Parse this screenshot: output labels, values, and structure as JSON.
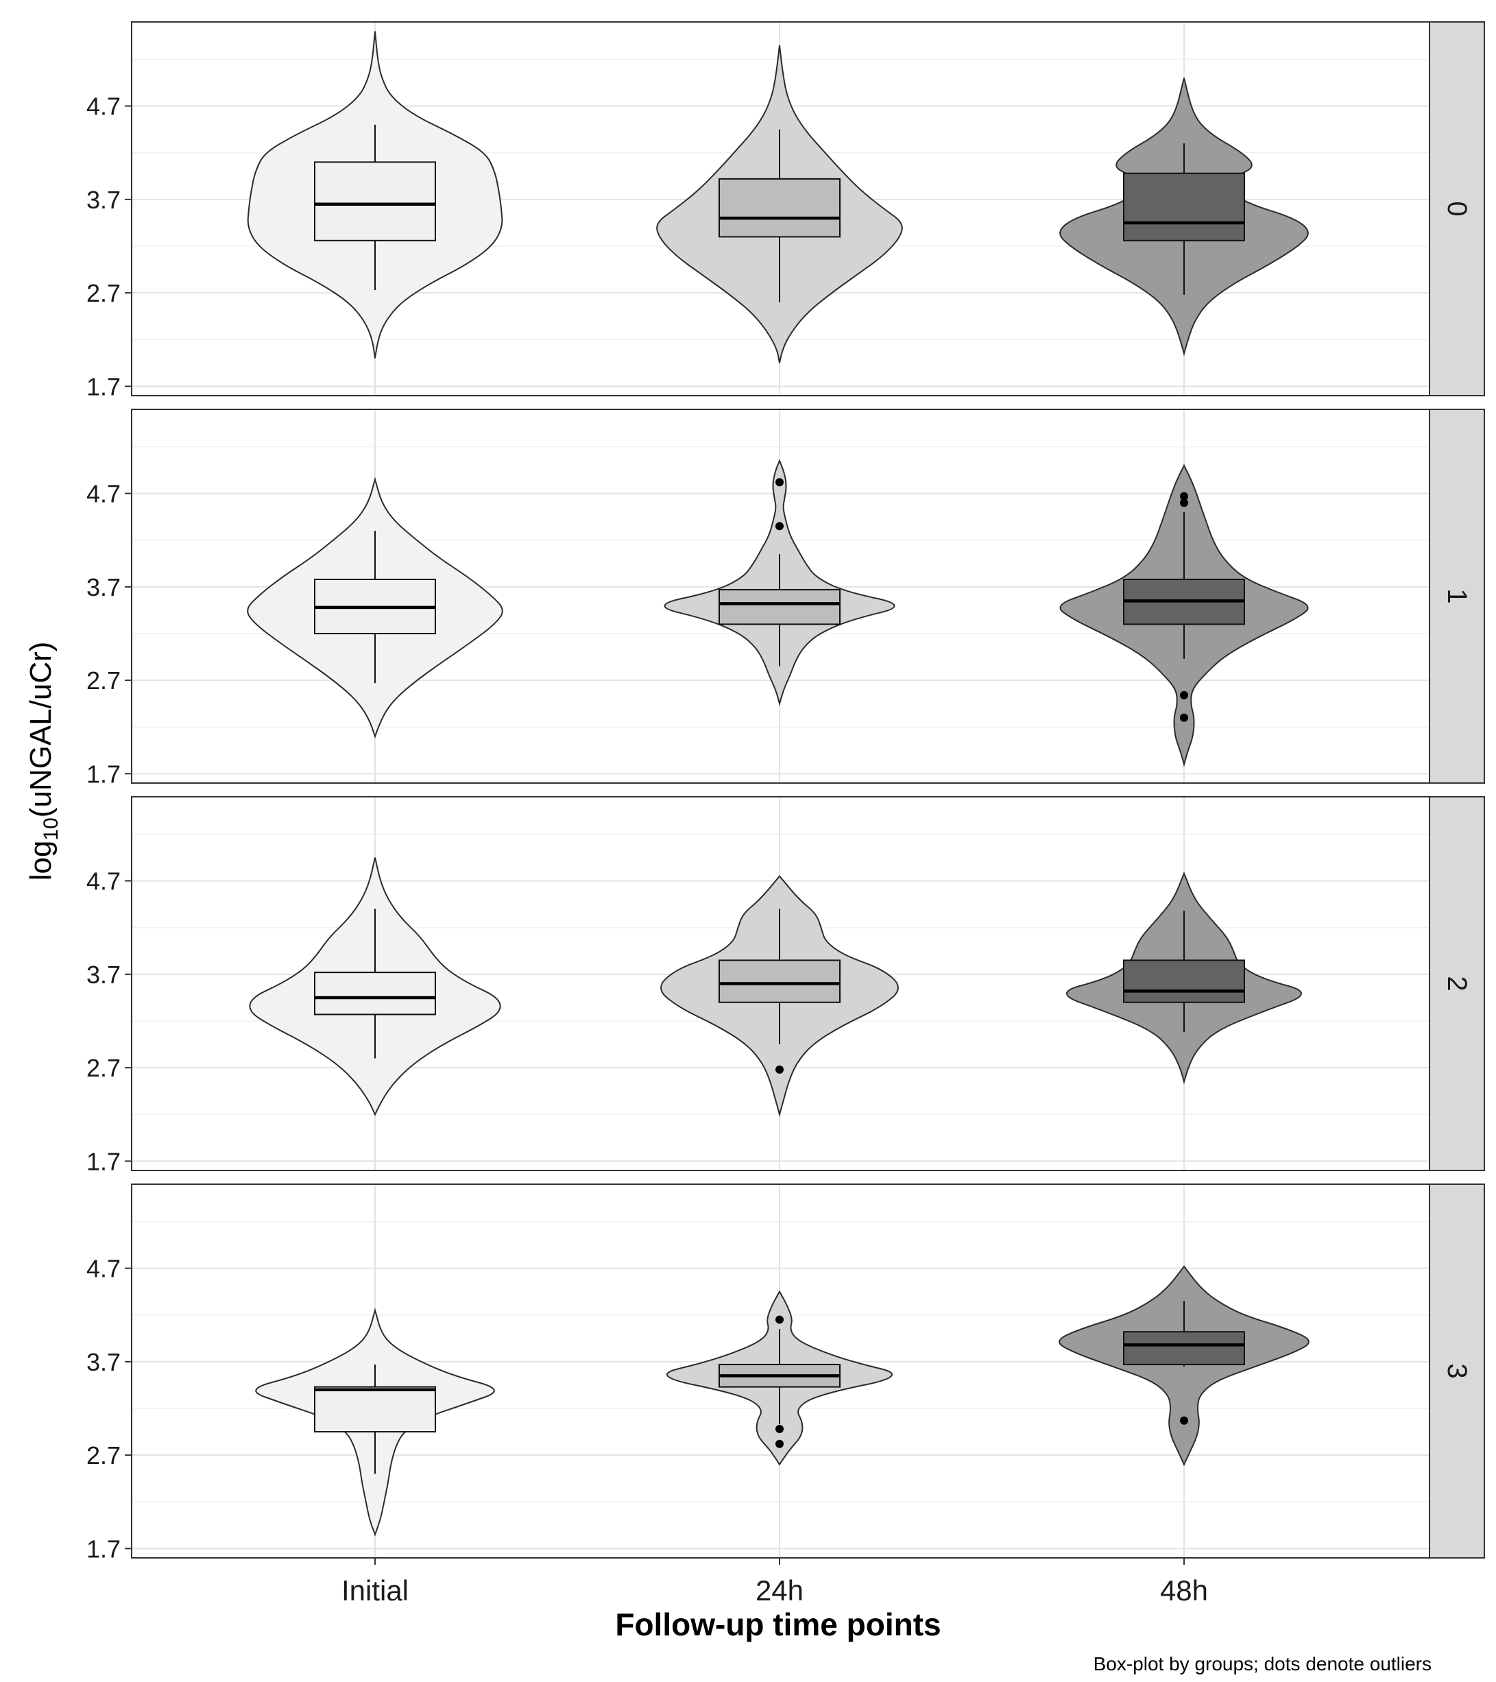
{
  "chart_data": {
    "type": "violin",
    "xlabel": "Follow-up time points",
    "ylabel_parts": {
      "base": "log",
      "subscript": "10",
      "rest": "(uNGAL/uCr)"
    },
    "caption": "Box-plot by groups; dots denote outliers",
    "categories": [
      "Initial",
      "24h",
      "48h"
    ],
    "yticks": [
      "4.7",
      "3.7",
      "2.7",
      "1.7"
    ],
    "ylim": [
      1.6,
      5.6
    ],
    "grid": true,
    "fill_colors": [
      "#f2f2f2",
      "#d4d4d4",
      "#9b9b9b"
    ],
    "box_colors": [
      "#f0f0f0",
      "#bdbdbd",
      "#636363"
    ],
    "panels": [
      {
        "label": "0",
        "groups": [
          {
            "box": {
              "q1": 3.26,
              "median": 3.65,
              "q3": 4.1,
              "whisker_low": 2.73,
              "whisker_high": 4.5
            },
            "violin_min": 2.0,
            "violin_max": 5.5,
            "profile": [
              [
                2.0,
                0
              ],
              [
                2.2,
                0.02
              ],
              [
                2.4,
                0.08
              ],
              [
                2.6,
                0.2
              ],
              [
                2.8,
                0.42
              ],
              [
                3.0,
                0.7
              ],
              [
                3.2,
                0.9
              ],
              [
                3.4,
                0.98
              ],
              [
                3.6,
                0.97
              ],
              [
                3.8,
                0.95
              ],
              [
                4.0,
                0.92
              ],
              [
                4.2,
                0.85
              ],
              [
                4.4,
                0.6
              ],
              [
                4.6,
                0.3
              ],
              [
                4.8,
                0.12
              ],
              [
                5.0,
                0.05
              ],
              [
                5.2,
                0.02
              ],
              [
                5.5,
                0
              ]
            ],
            "outliers": []
          },
          {
            "box": {
              "q1": 3.3,
              "median": 3.5,
              "q3": 3.92,
              "whisker_low": 2.6,
              "whisker_high": 4.45
            },
            "violin_min": 1.95,
            "violin_max": 5.35,
            "profile": [
              [
                1.95,
                0
              ],
              [
                2.1,
                0.02
              ],
              [
                2.3,
                0.1
              ],
              [
                2.5,
                0.22
              ],
              [
                2.7,
                0.4
              ],
              [
                2.9,
                0.6
              ],
              [
                3.1,
                0.8
              ],
              [
                3.3,
                0.93
              ],
              [
                3.45,
                0.95
              ],
              [
                3.6,
                0.8
              ],
              [
                3.8,
                0.62
              ],
              [
                4.0,
                0.48
              ],
              [
                4.2,
                0.35
              ],
              [
                4.4,
                0.22
              ],
              [
                4.6,
                0.12
              ],
              [
                4.8,
                0.06
              ],
              [
                5.0,
                0.03
              ],
              [
                5.35,
                0
              ]
            ],
            "outliers": []
          },
          {
            "box": {
              "q1": 3.26,
              "median": 3.45,
              "q3": 3.98,
              "whisker_low": 2.68,
              "whisker_high": 4.3
            },
            "violin_min": 2.05,
            "violin_max": 5.0,
            "profile": [
              [
                2.05,
                0
              ],
              [
                2.2,
                0.03
              ],
              [
                2.4,
                0.08
              ],
              [
                2.6,
                0.18
              ],
              [
                2.8,
                0.38
              ],
              [
                3.0,
                0.65
              ],
              [
                3.2,
                0.88
              ],
              [
                3.35,
                0.98
              ],
              [
                3.5,
                0.85
              ],
              [
                3.65,
                0.5
              ],
              [
                3.8,
                0.33
              ],
              [
                3.95,
                0.4
              ],
              [
                4.05,
                0.55
              ],
              [
                4.2,
                0.45
              ],
              [
                4.4,
                0.2
              ],
              [
                4.6,
                0.07
              ],
              [
                5.0,
                0
              ]
            ],
            "outliers": []
          }
        ]
      },
      {
        "label": "1",
        "groups": [
          {
            "box": {
              "q1": 3.2,
              "median": 3.48,
              "q3": 3.78,
              "whisker_low": 2.67,
              "whisker_high": 4.3
            },
            "violin_min": 2.1,
            "violin_max": 4.85,
            "profile": [
              [
                2.1,
                0
              ],
              [
                2.3,
                0.05
              ],
              [
                2.5,
                0.15
              ],
              [
                2.7,
                0.32
              ],
              [
                2.9,
                0.52
              ],
              [
                3.1,
                0.73
              ],
              [
                3.3,
                0.92
              ],
              [
                3.45,
                1.0
              ],
              [
                3.6,
                0.9
              ],
              [
                3.8,
                0.72
              ],
              [
                4.0,
                0.5
              ],
              [
                4.2,
                0.32
              ],
              [
                4.4,
                0.15
              ],
              [
                4.6,
                0.05
              ],
              [
                4.85,
                0
              ]
            ],
            "outliers": []
          },
          {
            "box": {
              "q1": 3.3,
              "median": 3.52,
              "q3": 3.67,
              "whisker_low": 2.85,
              "whisker_high": 4.05
            },
            "violin_min": 2.45,
            "violin_max": 5.05,
            "profile": [
              [
                2.45,
                0
              ],
              [
                2.6,
                0.03
              ],
              [
                2.75,
                0.08
              ],
              [
                2.9,
                0.12
              ],
              [
                3.05,
                0.18
              ],
              [
                3.2,
                0.3
              ],
              [
                3.35,
                0.55
              ],
              [
                3.5,
                1.0
              ],
              [
                3.65,
                0.5
              ],
              [
                3.8,
                0.28
              ],
              [
                3.95,
                0.2
              ],
              [
                4.1,
                0.14
              ],
              [
                4.25,
                0.08
              ],
              [
                4.4,
                0.05
              ],
              [
                4.55,
                0.025
              ],
              [
                4.65,
                0.04
              ],
              [
                4.8,
                0.055
              ],
              [
                4.95,
                0.03
              ],
              [
                5.05,
                0
              ]
            ],
            "outliers": [
              4.35,
              4.82
            ]
          },
          {
            "box": {
              "q1": 3.3,
              "median": 3.55,
              "q3": 3.78,
              "whisker_low": 2.93,
              "whisker_high": 4.5
            },
            "violin_min": 1.8,
            "violin_max": 5.0,
            "profile": [
              [
                1.8,
                0
              ],
              [
                1.95,
                0.03
              ],
              [
                2.1,
                0.07
              ],
              [
                2.3,
                0.08
              ],
              [
                2.45,
                0.05
              ],
              [
                2.6,
                0.06
              ],
              [
                2.75,
                0.15
              ],
              [
                2.95,
                0.3
              ],
              [
                3.15,
                0.55
              ],
              [
                3.35,
                0.85
              ],
              [
                3.5,
                1.0
              ],
              [
                3.65,
                0.7
              ],
              [
                3.8,
                0.45
              ],
              [
                4.0,
                0.3
              ],
              [
                4.2,
                0.22
              ],
              [
                4.4,
                0.17
              ],
              [
                4.6,
                0.12
              ],
              [
                4.8,
                0.07
              ],
              [
                5.0,
                0
              ]
            ],
            "outliers": [
              2.3,
              2.54,
              4.6,
              4.67
            ]
          }
        ]
      },
      {
        "label": "2",
        "groups": [
          {
            "box": {
              "q1": 3.27,
              "median": 3.45,
              "q3": 3.72,
              "whisker_low": 2.8,
              "whisker_high": 4.4
            },
            "violin_min": 2.2,
            "violin_max": 4.95,
            "profile": [
              [
                2.2,
                0
              ],
              [
                2.35,
                0.05
              ],
              [
                2.55,
                0.15
              ],
              [
                2.75,
                0.3
              ],
              [
                2.95,
                0.52
              ],
              [
                3.15,
                0.8
              ],
              [
                3.3,
                0.97
              ],
              [
                3.45,
                0.95
              ],
              [
                3.6,
                0.72
              ],
              [
                3.75,
                0.55
              ],
              [
                3.9,
                0.45
              ],
              [
                4.1,
                0.35
              ],
              [
                4.3,
                0.2
              ],
              [
                4.5,
                0.1
              ],
              [
                4.7,
                0.04
              ],
              [
                4.95,
                0
              ]
            ],
            "outliers": []
          },
          {
            "box": {
              "q1": 3.4,
              "median": 3.6,
              "q3": 3.85,
              "whisker_low": 2.95,
              "whisker_high": 4.4
            },
            "violin_min": 2.2,
            "violin_max": 4.75,
            "profile": [
              [
                2.2,
                0
              ],
              [
                2.35,
                0.03
              ],
              [
                2.55,
                0.07
              ],
              [
                2.75,
                0.13
              ],
              [
                2.95,
                0.25
              ],
              [
                3.15,
                0.48
              ],
              [
                3.35,
                0.78
              ],
              [
                3.55,
                0.95
              ],
              [
                3.75,
                0.8
              ],
              [
                3.9,
                0.5
              ],
              [
                4.05,
                0.35
              ],
              [
                4.2,
                0.32
              ],
              [
                4.35,
                0.28
              ],
              [
                4.5,
                0.15
              ],
              [
                4.75,
                0
              ]
            ],
            "outliers": [
              2.68
            ]
          },
          {
            "box": {
              "q1": 3.4,
              "median": 3.52,
              "q3": 3.85,
              "whisker_low": 3.08,
              "whisker_high": 4.38
            },
            "violin_min": 2.55,
            "violin_max": 4.78,
            "profile": [
              [
                2.55,
                0
              ],
              [
                2.7,
                0.03
              ],
              [
                2.9,
                0.1
              ],
              [
                3.1,
                0.25
              ],
              [
                3.3,
                0.6
              ],
              [
                3.5,
                1.0
              ],
              [
                3.65,
                0.6
              ],
              [
                3.8,
                0.42
              ],
              [
                3.95,
                0.38
              ],
              [
                4.1,
                0.33
              ],
              [
                4.3,
                0.2
              ],
              [
                4.5,
                0.08
              ],
              [
                4.78,
                0
              ]
            ],
            "outliers": []
          }
        ]
      },
      {
        "label": "3",
        "groups": [
          {
            "box": {
              "q1": 2.95,
              "median": 3.4,
              "q3": 3.43,
              "whisker_low": 2.5,
              "whisker_high": 3.67
            },
            "violin_min": 1.85,
            "violin_max": 4.25,
            "profile": [
              [
                1.85,
                0
              ],
              [
                2.0,
                0.04
              ],
              [
                2.2,
                0.07
              ],
              [
                2.4,
                0.1
              ],
              [
                2.6,
                0.12
              ],
              [
                2.8,
                0.16
              ],
              [
                2.95,
                0.22
              ],
              [
                3.1,
                0.38
              ],
              [
                3.25,
                0.7
              ],
              [
                3.4,
                1.0
              ],
              [
                3.55,
                0.6
              ],
              [
                3.7,
                0.35
              ],
              [
                3.85,
                0.15
              ],
              [
                4.0,
                0.05
              ],
              [
                4.25,
                0
              ]
            ],
            "outliers": []
          },
          {
            "box": {
              "q1": 3.43,
              "median": 3.55,
              "q3": 3.67,
              "whisker_low": 3.03,
              "whisker_high": 4.05
            },
            "violin_min": 2.6,
            "violin_max": 4.45,
            "profile": [
              [
                2.6,
                0
              ],
              [
                2.75,
                0.07
              ],
              [
                2.9,
                0.17
              ],
              [
                3.05,
                0.18
              ],
              [
                3.2,
                0.12
              ],
              [
                3.35,
                0.3
              ],
              [
                3.55,
                1.0
              ],
              [
                3.7,
                0.55
              ],
              [
                3.85,
                0.25
              ],
              [
                3.95,
                0.12
              ],
              [
                4.05,
                0.08
              ],
              [
                4.15,
                0.1
              ],
              [
                4.3,
                0.06
              ],
              [
                4.45,
                0
              ]
            ],
            "outliers": [
              2.82,
              2.98,
              4.15
            ]
          },
          {
            "box": {
              "q1": 3.67,
              "median": 3.88,
              "q3": 4.02,
              "whisker_low": 3.65,
              "whisker_high": 4.35
            },
            "violin_min": 2.6,
            "violin_max": 4.72,
            "profile": [
              [
                2.6,
                0
              ],
              [
                2.75,
                0.05
              ],
              [
                2.9,
                0.1
              ],
              [
                3.05,
                0.12
              ],
              [
                3.2,
                0.1
              ],
              [
                3.35,
                0.12
              ],
              [
                3.5,
                0.25
              ],
              [
                3.65,
                0.55
              ],
              [
                3.8,
                0.85
              ],
              [
                3.92,
                1.0
              ],
              [
                4.05,
                0.8
              ],
              [
                4.2,
                0.45
              ],
              [
                4.35,
                0.25
              ],
              [
                4.5,
                0.12
              ],
              [
                4.72,
                0
              ]
            ],
            "outliers": [
              3.07
            ]
          }
        ]
      }
    ]
  }
}
